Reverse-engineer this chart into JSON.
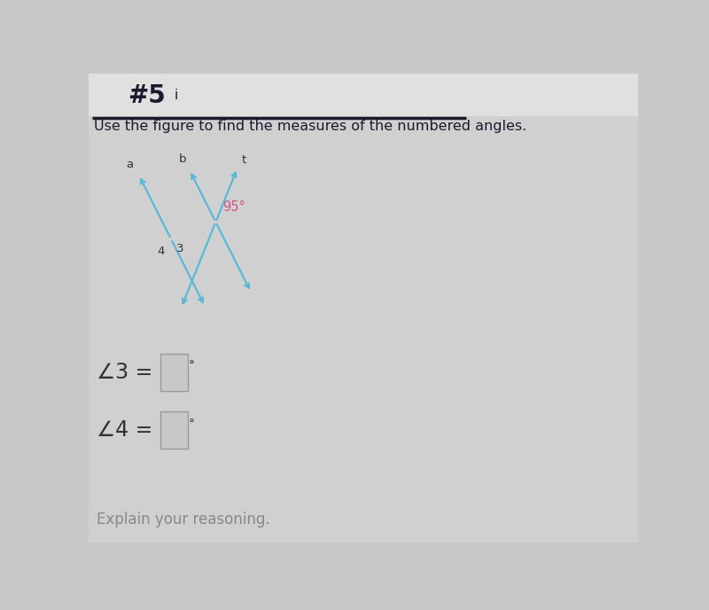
{
  "background_color": "#c8c8c8",
  "header_bg": "#e8e8e8",
  "line_color": "#5ab8d8",
  "angle_label_color": "#d05888",
  "text_color": "#333333",
  "dark_text": "#1a1a2e",
  "box_edge_color": "#999999",
  "box_face_color": "#c8c8c8",
  "explain_color": "#888888",
  "fig_width": 8.0,
  "fig_height": 6.88,
  "header_text": "#5",
  "header_i": "i",
  "subtitle": "Use the figure to find the measures of the numbered angles.",
  "angle_value": "95°",
  "label_a": "a",
  "label_b": "b",
  "label_t": "t",
  "label_3": "3",
  "label_4": "4",
  "angle3_label": "⎣3 =",
  "angle4_label": "⎣4 =",
  "explain_text": "Explain your reasoning."
}
